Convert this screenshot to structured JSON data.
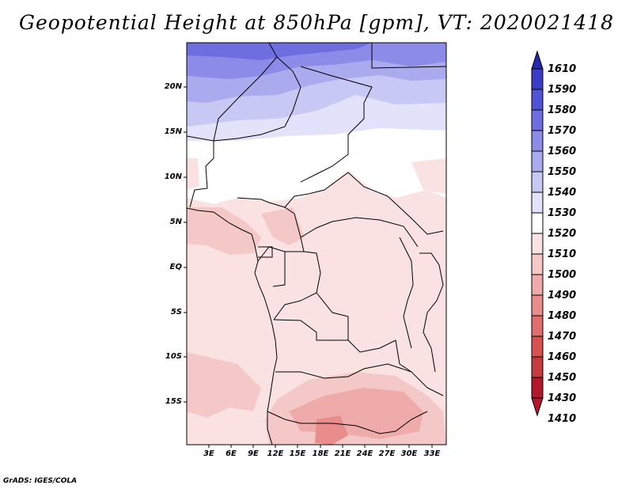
{
  "title": "Geopotential Height at 850hPa [gpm], VT: 2020021418",
  "credit": "GrADS: IGES/COLA",
  "map": {
    "lat_labels": [
      "20N",
      "15N",
      "10N",
      "5N",
      "EQ",
      "5S",
      "10S",
      "15S"
    ],
    "lon_labels": [
      "3E",
      "6E",
      "9E",
      "12E",
      "15E",
      "18E",
      "21E",
      "24E",
      "27E",
      "30E",
      "33E"
    ],
    "lon_range": [
      0,
      35
    ],
    "lat_range": [
      -20,
      24.5
    ]
  },
  "colorbar": {
    "levels": [
      "1410",
      "1430",
      "1450",
      "1460",
      "1470",
      "1480",
      "1490",
      "1500",
      "1510",
      "1520",
      "1530",
      "1540",
      "1550",
      "1560",
      "1570",
      "1580",
      "1590",
      "1610"
    ],
    "colors": [
      "#b2182b",
      "#c63b3f",
      "#d85252",
      "#e06e6e",
      "#e88c8c",
      "#efaaaa",
      "#f5c8c8",
      "#fbe2e2",
      "#ffffff",
      "#e2e2fb",
      "#c8c8f5",
      "#aaaaef",
      "#8c8ce8",
      "#6e6ee0",
      "#5252d8",
      "#3b3bc6",
      "#2626b0"
    ]
  }
}
